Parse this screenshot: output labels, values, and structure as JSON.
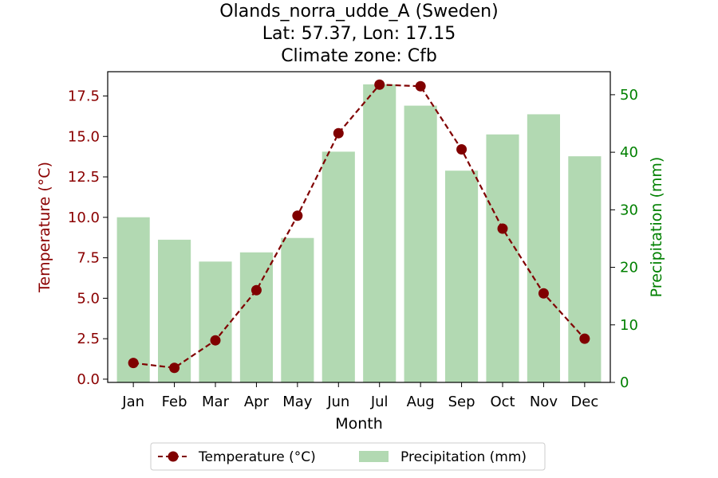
{
  "chart_data": {
    "type": "bar",
    "title_lines": [
      "Olands_norra_udde_A (Sweden)",
      "Lat: 57.37, Lon: 17.15",
      "Climate zone: Cfb"
    ],
    "xlabel": "Month",
    "categories": [
      "Jan",
      "Feb",
      "Mar",
      "Apr",
      "May",
      "Jun",
      "Jul",
      "Aug",
      "Sep",
      "Oct",
      "Nov",
      "Dec"
    ],
    "y_left": {
      "label": "Temperature (°C)",
      "lim": [
        -0.2,
        19.0
      ],
      "ticks": [
        0.0,
        2.5,
        5.0,
        7.5,
        10.0,
        12.5,
        15.0,
        17.5
      ],
      "tick_labels": [
        "0.0",
        "2.5",
        "5.0",
        "7.5",
        "10.0",
        "12.5",
        "15.0",
        "17.5"
      ],
      "color": "#8b0000"
    },
    "y_right": {
      "label": "Precipitation (mm)",
      "lim": [
        0,
        54
      ],
      "ticks": [
        0,
        10,
        20,
        30,
        40,
        50
      ],
      "tick_labels": [
        "0",
        "10",
        "20",
        "30",
        "40",
        "50"
      ],
      "color": "#008000"
    },
    "series": [
      {
        "name": "Temperature (°C)",
        "type": "line",
        "axis": "left",
        "color": "#800000",
        "values": [
          1.0,
          0.7,
          2.4,
          5.5,
          10.1,
          15.2,
          18.2,
          18.1,
          14.2,
          9.3,
          5.3,
          2.5
        ]
      },
      {
        "name": "Precipitation (mm)",
        "type": "bar",
        "axis": "right",
        "color": "#b2d9b2",
        "values": [
          28.7,
          24.8,
          21.0,
          22.6,
          25.1,
          40.1,
          51.8,
          48.1,
          36.8,
          43.1,
          46.6,
          39.3
        ]
      }
    ],
    "legend": {
      "placement": "bottom-center"
    },
    "grid": false
  }
}
